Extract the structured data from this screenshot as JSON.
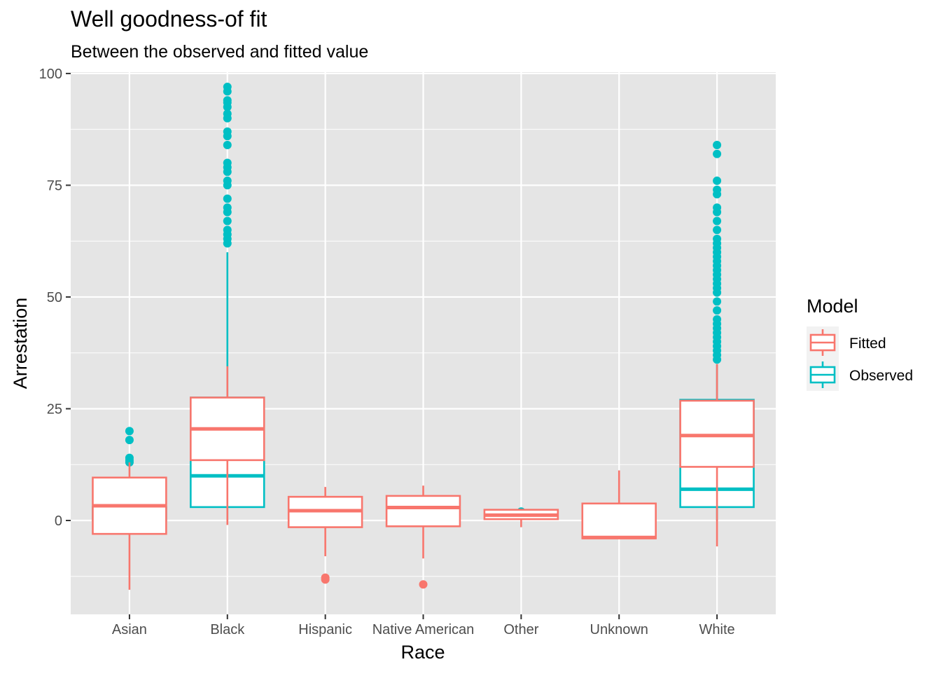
{
  "chart_data": {
    "type": "boxplot",
    "title": "Well goodness-of fit",
    "subtitle": "Between the observed and fitted value",
    "xlabel": "Race",
    "ylabel": "Arrestation",
    "categories": [
      "Asian",
      "Black",
      "Hispanic",
      "Native American",
      "Other",
      "Unknown",
      "White"
    ],
    "ylim": [
      -21,
      100.3
    ],
    "yticks": [
      0,
      25,
      50,
      75,
      100
    ],
    "grid": true,
    "legend": {
      "title": "Model",
      "placement": "right",
      "entries": [
        "Fitted",
        "Observed"
      ]
    },
    "colors": {
      "Fitted": "#f8766d",
      "Observed": "#00bfc4",
      "panel_background": "#e5e5e5",
      "grid": "#ffffff"
    },
    "series": [
      {
        "name": "Observed",
        "boxes": [
          {
            "category": "Asian",
            "whisker_low": 0,
            "q1": 0,
            "median": 0,
            "q3": 3,
            "whisker_high": 6,
            "outliers": [
              13,
              13.5,
              14,
              18,
              20
            ]
          },
          {
            "category": "Black",
            "whisker_low": 0,
            "q1": 3,
            "median": 10,
            "q3": 27.5,
            "whisker_high": 60,
            "outliers": [
              62,
              63,
              64,
              65,
              67,
              69,
              70,
              72,
              75,
              76,
              78,
              79,
              80,
              84,
              86,
              87,
              90,
              91,
              92.5,
              93.5,
              94,
              96,
              97
            ]
          },
          {
            "category": "Hispanic",
            "whisker_low": 0,
            "q1": 0,
            "median": 0,
            "q3": 0,
            "whisker_high": 0,
            "outliers": []
          },
          {
            "category": "Native American",
            "whisker_low": 0,
            "q1": 0,
            "median": 0,
            "q3": 0,
            "whisker_high": 0,
            "outliers": []
          },
          {
            "category": "Other",
            "whisker_low": 0,
            "q1": 0,
            "median": 0,
            "q3": 0,
            "whisker_high": 0,
            "outliers": [
              2
            ]
          },
          {
            "category": "Unknown",
            "whisker_low": 0,
            "q1": 0,
            "median": 0,
            "q3": 0,
            "whisker_high": 0,
            "outliers": []
          },
          {
            "category": "White",
            "whisker_low": 0,
            "q1": 3,
            "median": 7,
            "q3": 27,
            "whisker_high": 35,
            "outliers": [
              36,
              37,
              38,
              39,
              40,
              41,
              42,
              43,
              44,
              45,
              47,
              49,
              51,
              52,
              53,
              54,
              55,
              56,
              57,
              58,
              59,
              60,
              61,
              62,
              63,
              65,
              67,
              69,
              70,
              73,
              74,
              76,
              82,
              84
            ]
          }
        ]
      },
      {
        "name": "Fitted",
        "boxes": [
          {
            "category": "Asian",
            "whisker_low": -15.5,
            "q1": -3,
            "median": 3.3,
            "q3": 9.6,
            "whisker_high": 13,
            "outliers": []
          },
          {
            "category": "Black",
            "whisker_low": -1,
            "q1": 13.5,
            "median": 20.5,
            "q3": 27.5,
            "whisker_high": 34.5,
            "outliers": []
          },
          {
            "category": "Hispanic",
            "whisker_low": -8,
            "q1": -1.5,
            "median": 2.2,
            "q3": 5.3,
            "whisker_high": 7.5,
            "outliers": [
              -12.8,
              -13.2
            ]
          },
          {
            "category": "Native American",
            "whisker_low": -8.5,
            "q1": -1.3,
            "median": 2.9,
            "q3": 5.5,
            "whisker_high": 7.8,
            "outliers": [
              -14.3
            ]
          },
          {
            "category": "Other",
            "whisker_low": -1.5,
            "q1": 0.3,
            "median": 1.2,
            "q3": 2.4,
            "whisker_high": 2.4,
            "outliers": []
          },
          {
            "category": "Unknown",
            "whisker_low": -4,
            "q1": -4,
            "median": -3.8,
            "q3": 3.8,
            "whisker_high": 11.2,
            "outliers": []
          },
          {
            "category": "White",
            "whisker_low": -5.8,
            "q1": 12,
            "median": 19,
            "q3": 26.8,
            "whisker_high": 35,
            "outliers": []
          }
        ]
      }
    ]
  }
}
